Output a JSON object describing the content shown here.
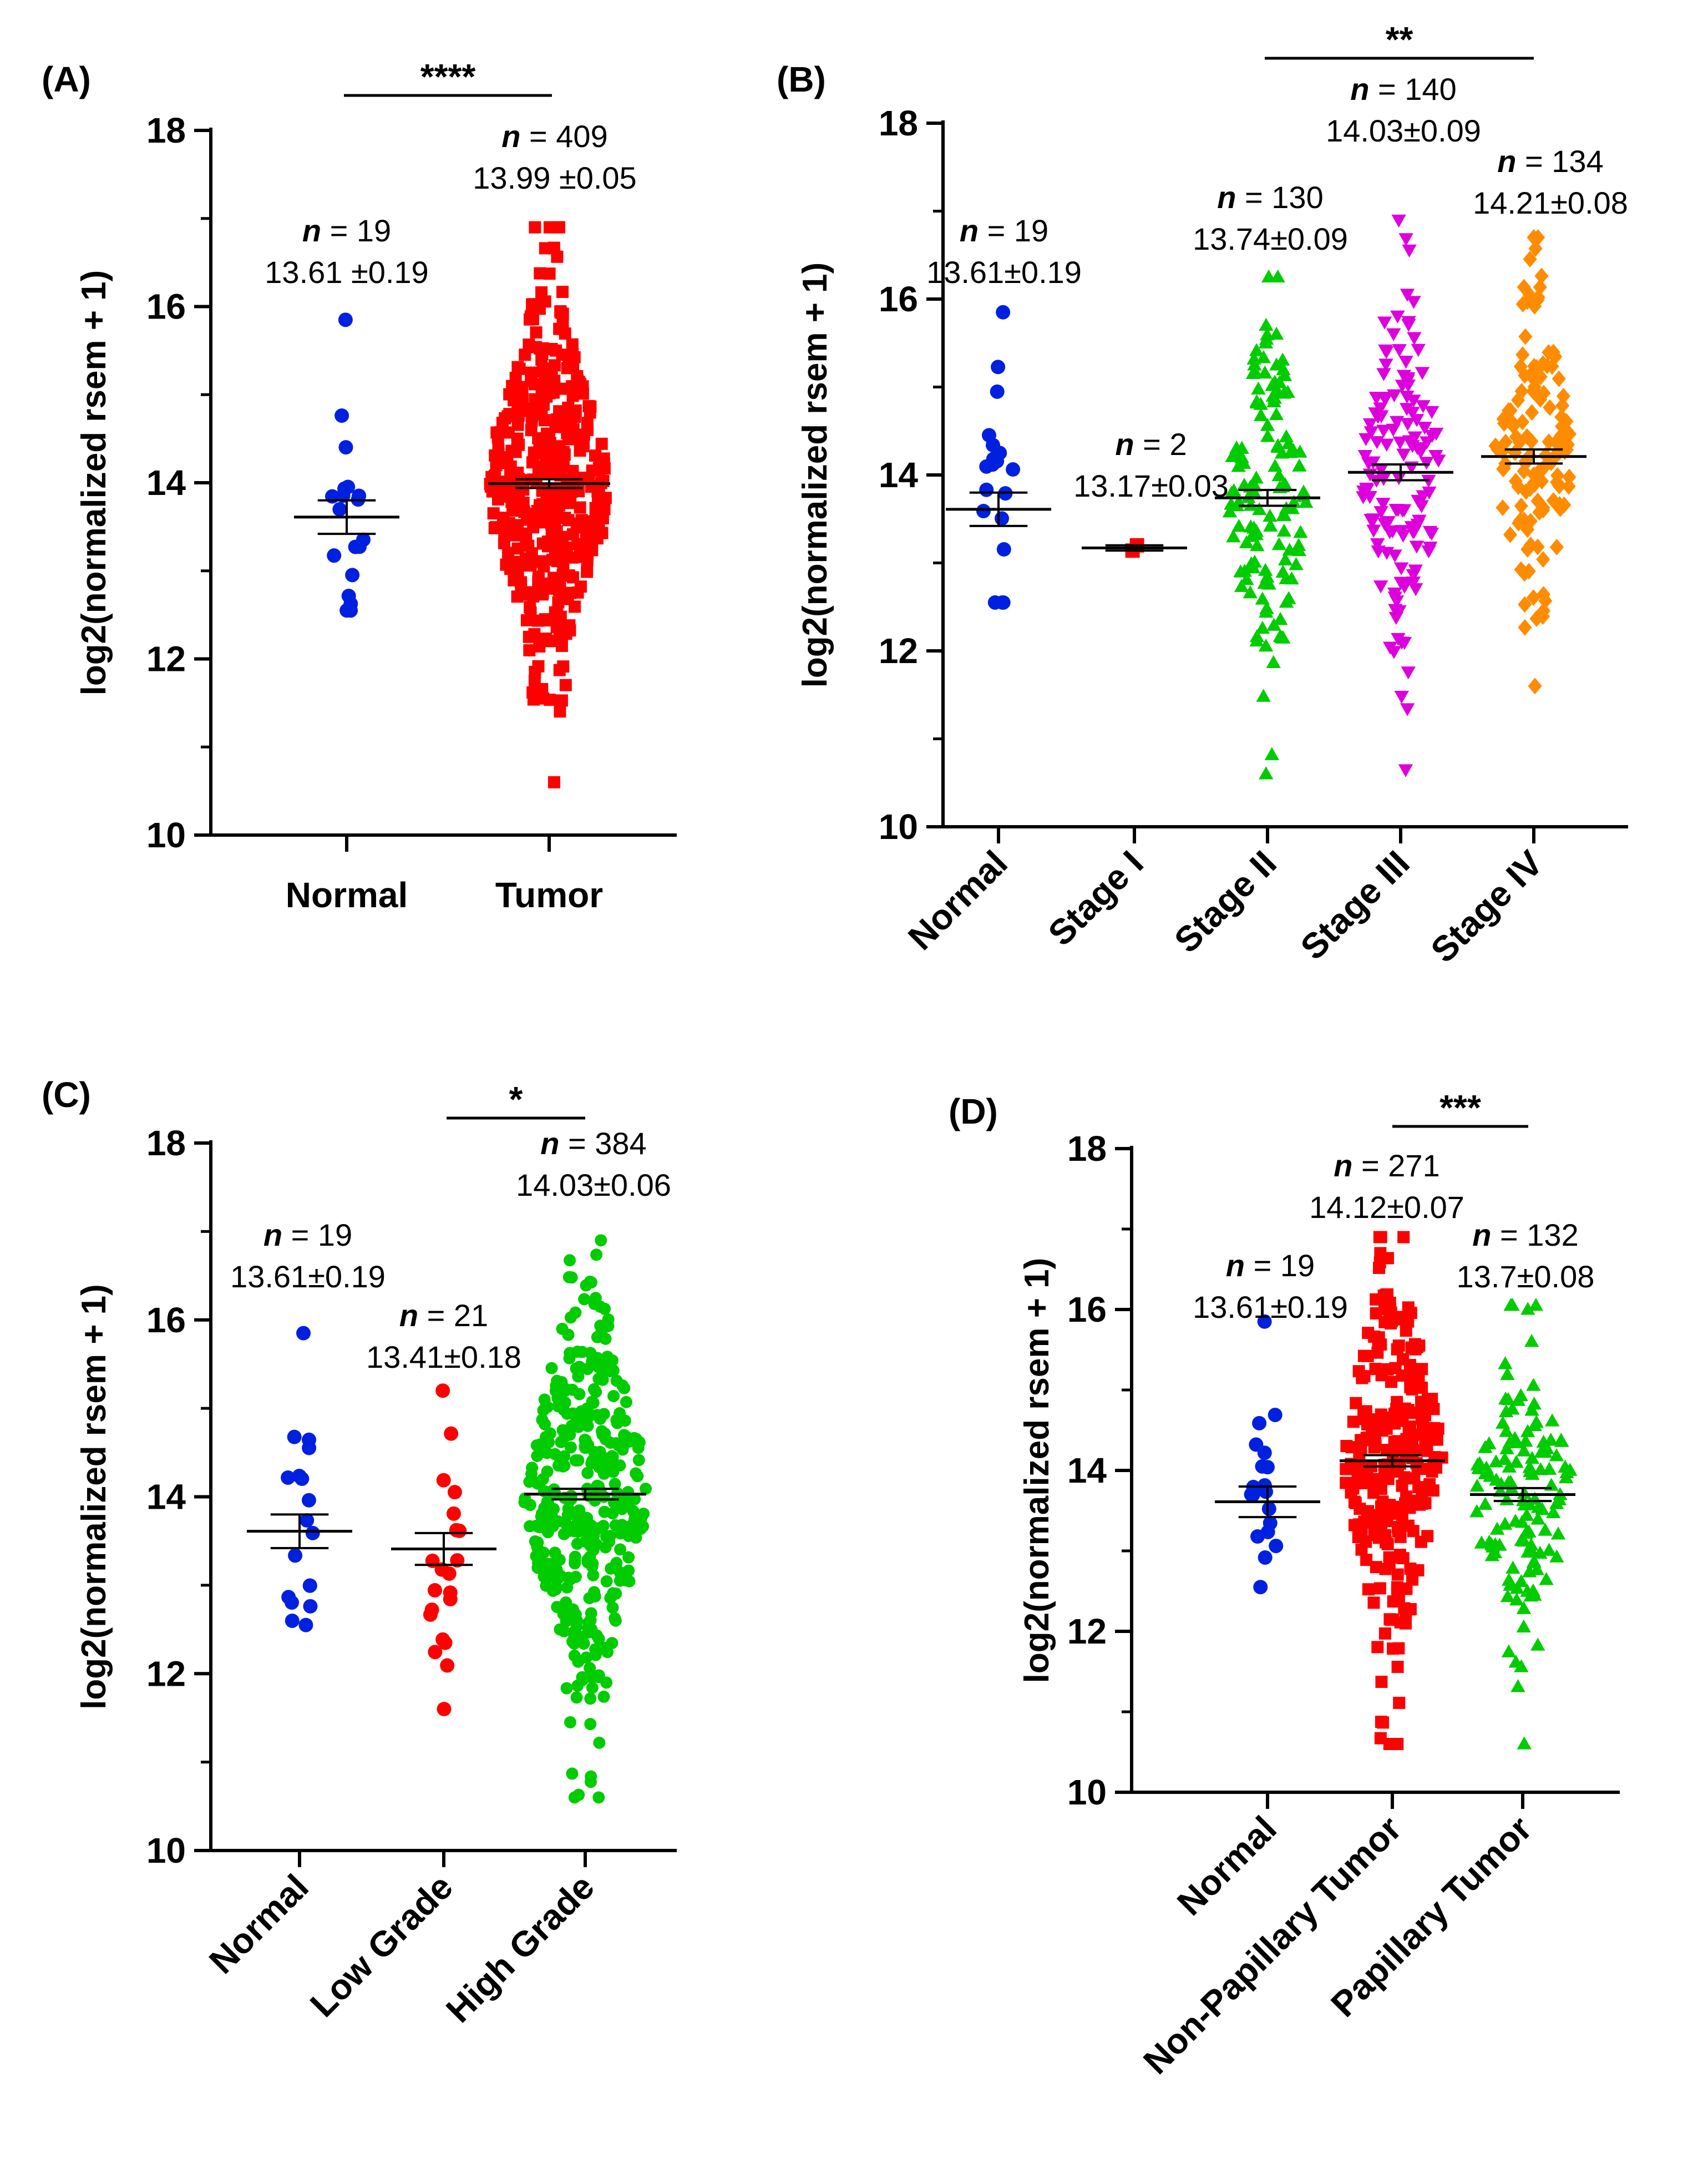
{
  "chart_data": [
    {
      "type": "scatter",
      "panel_label": "(A)",
      "ylabel": "log2(normalized rsem + 1)",
      "ylim": [
        10,
        18
      ],
      "yticks": [
        "10",
        "12",
        "14",
        "16",
        "18"
      ],
      "significance": "****",
      "groups": [
        {
          "name": "Normal",
          "n_prefix": "n",
          "n_text": " = 19",
          "stat": "13.61 ±0.19",
          "n": 19,
          "mean": 13.61,
          "sem": 0.19,
          "min": 12.55,
          "max": 15.85,
          "color": "#0020e0",
          "marker": "circle"
        },
        {
          "name": "Tumor",
          "n_prefix": "n",
          "n_text": " = 409",
          "stat": "13.99 ±0.05",
          "n": 409,
          "mean": 13.99,
          "sem": 0.05,
          "min": 10.6,
          "max": 16.9,
          "color": "#ff0000",
          "marker": "square"
        }
      ]
    },
    {
      "type": "scatter",
      "panel_label": "(B)",
      "ylabel": "log2(normalized rsem + 1)",
      "ylim": [
        10,
        18
      ],
      "yticks": [
        "10",
        "12",
        "14",
        "16",
        "18"
      ],
      "significance": "**",
      "groups": [
        {
          "name": "Normal",
          "n_prefix": "n",
          "n_text": " = 19",
          "stat": "13.61±0.19",
          "n": 19,
          "mean": 13.61,
          "sem": 0.19,
          "min": 12.55,
          "max": 15.85,
          "color": "#0020e0",
          "marker": "circle"
        },
        {
          "name": "Stage I",
          "n_prefix": "n",
          "n_text": " = 2",
          "stat": "13.17±0.03",
          "n": 2,
          "mean": 13.17,
          "sem": 0.03,
          "min": 13.14,
          "max": 13.2,
          "color": "#ff0000",
          "marker": "square"
        },
        {
          "name": "Stage II",
          "n_prefix": "n",
          "n_text": " = 130",
          "stat": "13.74±0.09",
          "n": 130,
          "mean": 13.74,
          "sem": 0.09,
          "min": 10.6,
          "max": 16.25,
          "color": "#00cc00",
          "marker": "triangle-up"
        },
        {
          "name": "Stage III",
          "n_prefix": "n",
          "n_text": " = 140",
          "stat": "14.03±0.09",
          "n": 140,
          "mean": 14.03,
          "sem": 0.09,
          "min": 10.65,
          "max": 16.9,
          "color": "#dd00dd",
          "marker": "triangle-down"
        },
        {
          "name": "Stage IV",
          "n_prefix": "n",
          "n_text": " = 134",
          "stat": "14.21±0.08",
          "n": 134,
          "mean": 14.21,
          "sem": 0.08,
          "min": 11.6,
          "max": 16.7,
          "color": "#ff8c00",
          "marker": "diamond"
        }
      ]
    },
    {
      "type": "scatter",
      "panel_label": "(C)",
      "ylabel": "log2(normalized rsem + 1)",
      "ylim": [
        10,
        18
      ],
      "yticks": [
        "10",
        "12",
        "14",
        "16",
        "18"
      ],
      "significance": "*",
      "groups": [
        {
          "name": "Normal",
          "n_prefix": "n",
          "n_text": " = 19",
          "stat": "13.61±0.19",
          "n": 19,
          "mean": 13.61,
          "sem": 0.19,
          "min": 12.55,
          "max": 15.85,
          "color": "#0020e0",
          "marker": "circle"
        },
        {
          "name": "Low Grade",
          "n_prefix": "n",
          "n_text": " = 21",
          "stat": "13.41±0.18",
          "n": 21,
          "mean": 13.41,
          "sem": 0.18,
          "min": 11.6,
          "max": 15.2,
          "color": "#ff0000",
          "marker": "circle"
        },
        {
          "name": "High Grade",
          "n_prefix": "n",
          "n_text": " = 384",
          "stat": "14.03±0.06",
          "n": 384,
          "mean": 14.03,
          "sem": 0.06,
          "min": 10.6,
          "max": 16.9,
          "color": "#00cc00",
          "marker": "circle"
        }
      ]
    },
    {
      "type": "scatter",
      "panel_label": "(D)",
      "ylabel": "log2(normalized rsem + 1)",
      "ylim": [
        10,
        18
      ],
      "yticks": [
        "10",
        "12",
        "14",
        "16",
        "18"
      ],
      "significance": "***",
      "groups": [
        {
          "name": "Normal",
          "n_prefix": "n",
          "n_text": " = 19",
          "stat": "13.61±0.19",
          "n": 19,
          "mean": 13.61,
          "sem": 0.19,
          "min": 12.55,
          "max": 15.85,
          "color": "#0020e0",
          "marker": "circle"
        },
        {
          "name": "Non-Papillary Tumor",
          "n_prefix": "n",
          "n_text": " = 271",
          "stat": "14.12±0.07",
          "n": 271,
          "mean": 14.12,
          "sem": 0.07,
          "min": 10.6,
          "max": 16.9,
          "color": "#ff0000",
          "marker": "square"
        },
        {
          "name": "Papillary Tumor",
          "n_prefix": "n",
          "n_text": " = 132",
          "stat": "13.7±0.08",
          "n": 132,
          "mean": 13.7,
          "sem": 0.08,
          "min": 10.6,
          "max": 16.05,
          "color": "#00cc00",
          "marker": "triangle-up"
        }
      ]
    }
  ]
}
